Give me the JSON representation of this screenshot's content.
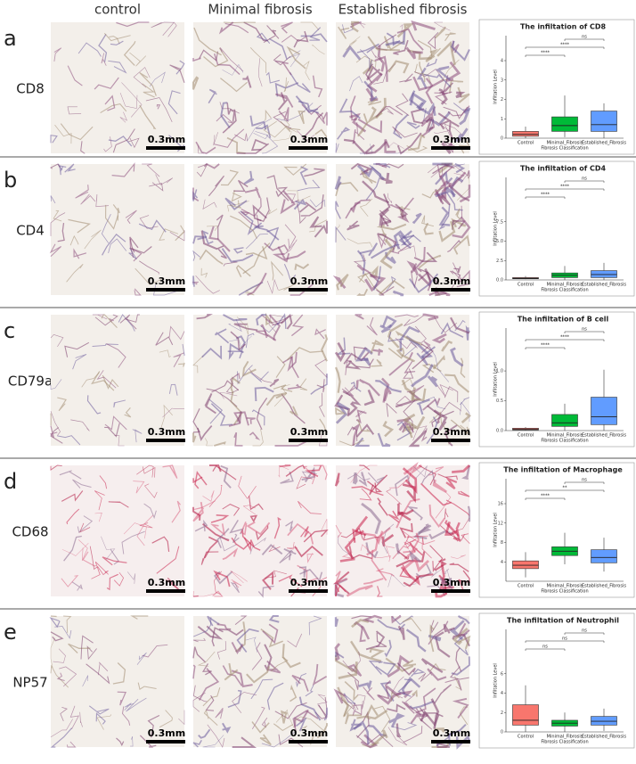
{
  "header": {
    "columns": [
      "control",
      "Minimal fibrosis",
      "Established fibrosis"
    ]
  },
  "scale_bar": "0.3mm",
  "rows": [
    {
      "letter": "a",
      "marker": "CD8"
    },
    {
      "letter": "b",
      "marker": "CD4"
    },
    {
      "letter": "c",
      "marker": "CD79a"
    },
    {
      "letter": "d",
      "marker": "CD68"
    },
    {
      "letter": "e",
      "marker": "NP57"
    }
  ],
  "chart_data": [
    {
      "type": "box",
      "title": "The infiltation of CD8",
      "x_label": "Fibrosis Classification",
      "y_label": "Infiltation Level",
      "categories": [
        "Control",
        "Minimal_Fibrosis",
        "Established_Fibrosis"
      ],
      "colors": [
        "#f8766d",
        "#00ba38",
        "#619cff"
      ],
      "boxes": [
        {
          "min": 0,
          "q1": 0.1,
          "median": 0.2,
          "q3": 0.35,
          "max": 0.6
        },
        {
          "min": 0.05,
          "q1": 0.35,
          "median": 0.65,
          "q3": 1.1,
          "max": 2.2
        },
        {
          "min": 0,
          "q1": 0.35,
          "median": 0.7,
          "q3": 1.4,
          "max": 1.8
        }
      ],
      "ylim": [
        0,
        4
      ],
      "yticks": [
        0,
        1,
        2,
        3,
        4
      ],
      "significance": [
        "****",
        "****",
        "ns"
      ]
    },
    {
      "type": "box",
      "title": "The infiltation of CD4",
      "x_label": "Fibrosis Classification",
      "y_label": "Infiltation Level",
      "categories": [
        "Control",
        "Minimal_Fibrosis",
        "Established_Fibrosis"
      ],
      "colors": [
        "#f8766d",
        "#00ba38",
        "#619cff"
      ],
      "boxes": [
        {
          "min": 0.1,
          "q1": 0.15,
          "median": 0.2,
          "q3": 0.3,
          "max": 0.5
        },
        {
          "min": 0,
          "q1": 0.3,
          "median": 0.6,
          "q3": 0.9,
          "max": 1.8
        },
        {
          "min": 0,
          "q1": 0.3,
          "median": 0.7,
          "q3": 1.2,
          "max": 2.2
        }
      ],
      "ylim": [
        0,
        10
      ],
      "yticks": [
        {
          "value": 0,
          "label": "0.0"
        },
        {
          "value": 2.5,
          "label": "2.5"
        },
        {
          "value": 5,
          "label": "5.0"
        },
        {
          "value": 7.5,
          "label": "7.5"
        }
      ],
      "significance": [
        "****",
        "****",
        "ns"
      ]
    },
    {
      "type": "box",
      "title": "The infiltation of B cell",
      "x_label": "Fibrosis Classification",
      "y_label": "Infiltation Level",
      "categories": [
        "Control",
        "Minimal_Fibrosis",
        "Established_Fibrosis"
      ],
      "colors": [
        "#f8766d",
        "#00ba38",
        "#619cff"
      ],
      "boxes": [
        {
          "min": 0,
          "q1": 0.01,
          "median": 0.02,
          "q3": 0.04,
          "max": 0.06
        },
        {
          "min": 0,
          "q1": 0.07,
          "median": 0.13,
          "q3": 0.27,
          "max": 0.45
        },
        {
          "min": 0,
          "q1": 0.1,
          "median": 0.23,
          "q3": 0.56,
          "max": 1.02
        }
      ],
      "ylim": [
        0,
        1.3
      ],
      "yticks": [
        {
          "value": 0,
          "label": "0.0"
        },
        0.5,
        {
          "value": 1,
          "label": "1.0"
        }
      ],
      "significance": [
        "****",
        "****",
        "ns"
      ]
    },
    {
      "type": "box",
      "title": "The infiltation of Macrophage",
      "x_label": "Fibrosis Classification",
      "y_label": "Infiltation Level",
      "categories": [
        "Control",
        "Minimal_Fibrosis",
        "Established_Fibrosis"
      ],
      "colors": [
        "#f8766d",
        "#00ba38",
        "#619cff"
      ],
      "boxes": [
        {
          "min": 0.8,
          "q1": 2.6,
          "median": 3.3,
          "q3": 4.2,
          "max": 6
        },
        {
          "min": 3.5,
          "q1": 5.3,
          "median": 6.2,
          "q3": 7.1,
          "max": 10
        },
        {
          "min": 2,
          "q1": 3.8,
          "median": 4.9,
          "q3": 6.5,
          "max": 9
        }
      ],
      "ylim": [
        0,
        16
      ],
      "yticks": [
        4,
        8,
        12,
        16
      ],
      "significance": [
        "****",
        "**",
        "ns"
      ]
    },
    {
      "type": "box",
      "title": "The infiltation of Neutrophil",
      "x_label": "Fibrosis Classification",
      "y_label": "Infiltation Level",
      "categories": [
        "Control",
        "Minimal_Fibrosis",
        "Established_Fibrosis"
      ],
      "colors": [
        "#f8766d",
        "#00ba38",
        "#619cff"
      ],
      "boxes": [
        {
          "min": 0,
          "q1": 0.7,
          "median": 1.2,
          "q3": 2.8,
          "max": 4.8
        },
        {
          "min": 0,
          "q1": 0.6,
          "median": 0.9,
          "q3": 1.2,
          "max": 2
        },
        {
          "min": 0.1,
          "q1": 0.7,
          "median": 1.1,
          "q3": 1.6,
          "max": 2.4
        }
      ],
      "ylim": [
        0,
        8
      ],
      "yticks": [
        0,
        2,
        4,
        6
      ],
      "significance": [
        "ns",
        "ns",
        "ns"
      ]
    }
  ]
}
